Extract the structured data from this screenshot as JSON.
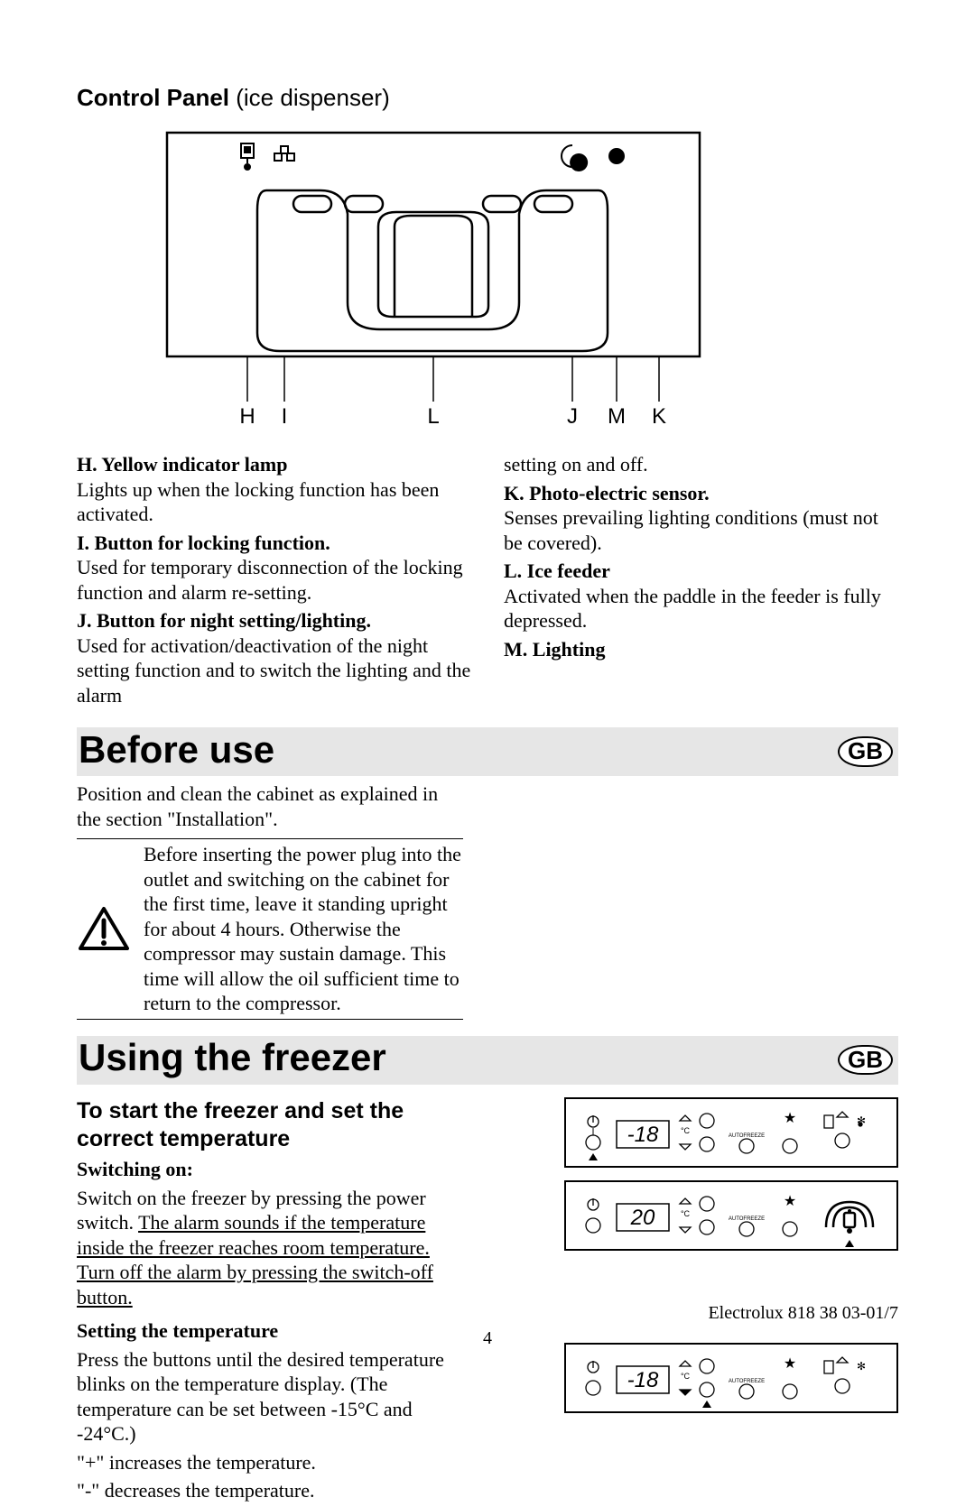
{
  "title": {
    "bold": "Control Panel",
    "light": " (ice dispenser)"
  },
  "diagram_labels": [
    "H",
    "I",
    "L",
    "J",
    "M",
    "K"
  ],
  "leftcol": [
    {
      "head": "H. Yellow indicator lamp",
      "body": "Lights up when the locking function has been activated."
    },
    {
      "head": "I. Button for locking function.",
      "body": "Used for temporary disconnection of the locking function and alarm re-setting."
    },
    {
      "head": "J. Button for night setting/lighting.",
      "body": "Used for activation/deactivation of the night setting function and to switch the lighting and the alarm"
    }
  ],
  "rightcol_pre": "setting on and off.",
  "rightcol": [
    {
      "head": "K. Photo-electric sensor.",
      "body": "Senses prevailing lighting conditions (must not be covered)."
    },
    {
      "head": "L.  Ice feeder",
      "body": "Activated when the paddle in the feeder is fully depressed."
    },
    {
      "head": "M. Lighting",
      "body": ""
    }
  ],
  "sect1": "Before use",
  "gb": "GB",
  "before_use_para": "Position and clean the cabinet as explained in the section \"Installation\".",
  "warn_text": "Before inserting the power plug into the outlet and switching on the cabinet for the first time, leave it standing upright for about  4 hours. Otherwise the compressor may sustain damage. This time will allow the oil sufficient time to return to the compressor.",
  "sect2": "Using the freezer",
  "start_h2": "To start  the freezer and set the correct temperature",
  "switch_on_h": "Switching on:",
  "switch_on_p1": "Switch on the freezer by pressing the power switch.",
  "switch_on_u": "The alarm sounds if the temperature inside the freezer reaches room temperature. Turn off the alarm by pressing the switch-off button.",
  "set_temp_h": "Setting the temperature",
  "set_temp_p": "Press the buttons until the desired temperature blinks on the temperature display. (The temperature can be set between -15°C and -24°C.)",
  "set_temp_plus": "\"+\" increases the temperature.",
  "set_temp_minus": "\"-\" decreases the temperature.",
  "panels": [
    {
      "temp": "-18",
      "highlighted": "none",
      "power_on": true,
      "alarm_on": true
    },
    {
      "temp": "20",
      "highlighted": "alarm",
      "power_on": false,
      "alarm_on": false
    },
    {
      "temp": "-18",
      "highlighted": "minus",
      "power_on": false,
      "alarm_on": false
    }
  ],
  "footer": "Electrolux 818 38 03-01/7",
  "pagenum": "4",
  "colors": {
    "banner_bg": "#e6e6e6",
    "line": "#000000"
  }
}
